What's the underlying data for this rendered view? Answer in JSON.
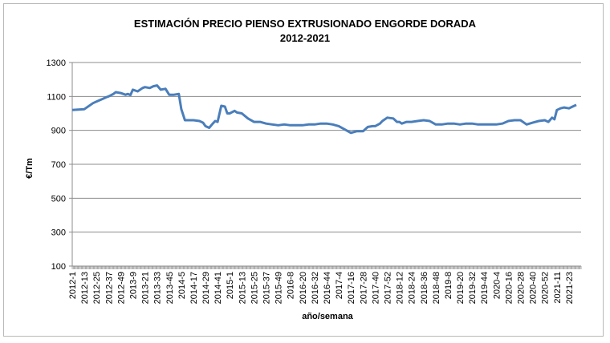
{
  "chart_data": {
    "type": "line",
    "title": "ESTIMACIÓN PRECIO PIENSO EXTRUSIONADO ENGORDE DORADA",
    "subtitle": "2012-2021",
    "xlabel": "año/semana",
    "ylabel": "€/Tm",
    "ylim": [
      100,
      1300
    ],
    "yticks": [
      100,
      300,
      500,
      700,
      900,
      1100,
      1300
    ],
    "grid": "horizontal",
    "legend": "none",
    "line_color": "#4a7ebb",
    "xtick_labels": [
      "2012-1",
      "2012-13",
      "2012-25",
      "2012-37",
      "2012-49",
      "2013-9",
      "2013-21",
      "2013-33",
      "2013-45",
      "2014-5",
      "2014-17",
      "2014-29",
      "2014-41",
      "2015-1",
      "2015-13",
      "2015-25",
      "2015-37",
      "2015-49",
      "2016-8",
      "2016-20",
      "2016-32",
      "2016-44",
      "2017-4",
      "2017-16",
      "2017-28",
      "2017-40",
      "2017-52",
      "2018-12",
      "2018-24",
      "2018-36",
      "2018-48",
      "2019-8",
      "2019-20",
      "2019-32",
      "2019-44",
      "2020-4",
      "2020-16",
      "2020-28",
      "2020-40",
      "2020-52",
      "2021-11",
      "2021-23"
    ],
    "series": [
      {
        "x": [
          0,
          1,
          1.7,
          2,
          2.5,
          2.8,
          3,
          3.4,
          3.6,
          4,
          4.4,
          4.6,
          4.8,
          5,
          5.4,
          5.8,
          6,
          6.4,
          6.7,
          7,
          7.3,
          7.7,
          8,
          8.4,
          8.8,
          9,
          9.3,
          9.6,
          10,
          10.5,
          10.8,
          11,
          11.3,
          11.6,
          11.8,
          12,
          12.3,
          12.6,
          12.8,
          13,
          13.4,
          13.6,
          14,
          14.5,
          15,
          15.5,
          16,
          16.5,
          17,
          17.5,
          18,
          18.5,
          19,
          19.5,
          20,
          20.5,
          21,
          21.5,
          22,
          22.5,
          23,
          23.5,
          24,
          24.4,
          24.8,
          25,
          25.4,
          25.6,
          26,
          26.5,
          26.8,
          27,
          27.2,
          27.6,
          28,
          28.5,
          29,
          29.5,
          30,
          30.5,
          31,
          31.5,
          32,
          32.5,
          33,
          33.5,
          34,
          34.5,
          35,
          35.5,
          36,
          36.5,
          37,
          37.5,
          38,
          38.5,
          39,
          39.3,
          39.6,
          39.8,
          40,
          40.3,
          40.6,
          41,
          41.3,
          41.6
        ],
        "values": [
          1020,
          1025,
          1060,
          1070,
          1085,
          1095,
          1100,
          1115,
          1125,
          1120,
          1110,
          1115,
          1108,
          1140,
          1130,
          1150,
          1155,
          1150,
          1160,
          1165,
          1140,
          1145,
          1110,
          1110,
          1115,
          1025,
          960,
          960,
          960,
          955,
          945,
          925,
          915,
          940,
          955,
          950,
          1045,
          1040,
          1000,
          1000,
          1015,
          1005,
          1000,
          970,
          950,
          950,
          940,
          935,
          930,
          935,
          930,
          930,
          930,
          935,
          935,
          940,
          940,
          935,
          925,
          905,
          885,
          895,
          895,
          920,
          925,
          925,
          940,
          955,
          975,
          970,
          950,
          950,
          940,
          950,
          950,
          955,
          960,
          955,
          935,
          935,
          940,
          940,
          935,
          940,
          940,
          935,
          935,
          935,
          935,
          940,
          955,
          960,
          960,
          935,
          945,
          955,
          960,
          950,
          975,
          965,
          1020,
          1030,
          1035,
          1030,
          1040,
          1050
        ]
      }
    ]
  }
}
